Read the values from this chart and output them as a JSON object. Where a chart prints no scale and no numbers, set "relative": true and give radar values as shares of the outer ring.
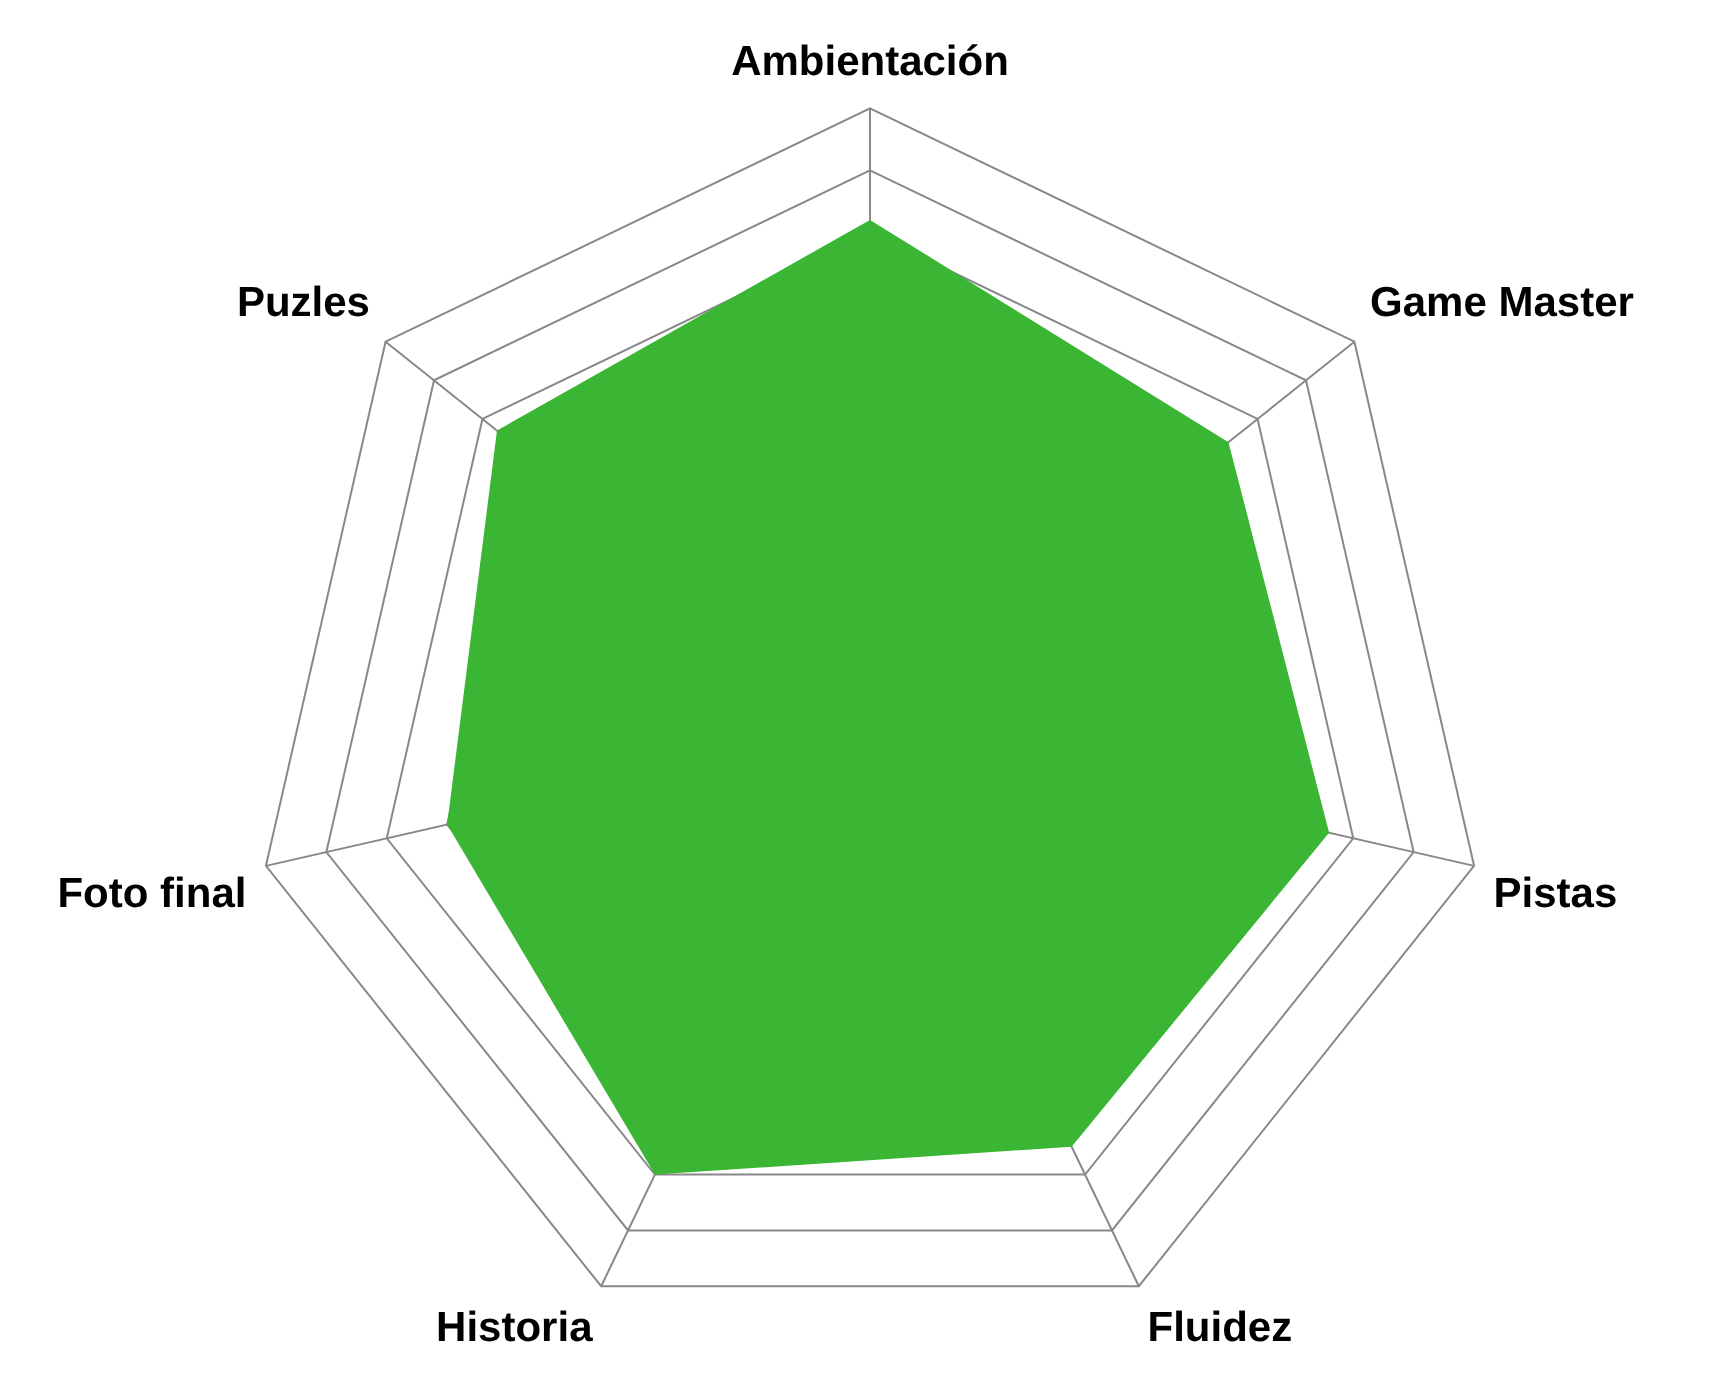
{
  "chart_data": {
    "type": "radar",
    "relative": true,
    "grid": true,
    "categories": [
      "Ambientación",
      "Game Master",
      "Pistas",
      "Fluidez",
      "Historia",
      "Foto final",
      "Puzles"
    ],
    "series": [
      {
        "color": "#3ab534",
        "values": [
          0.82,
          0.74,
          0.76,
          0.75,
          0.8,
          0.7,
          0.77
        ]
      }
    ]
  }
}
